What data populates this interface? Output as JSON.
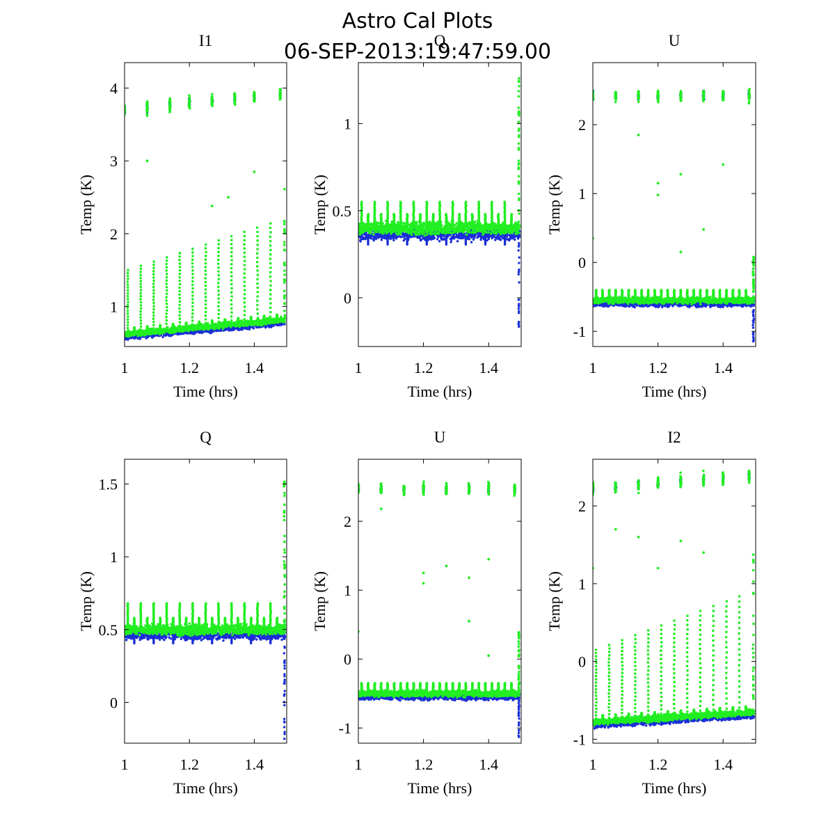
{
  "figure": {
    "title_line1": "Astro Cal Plots",
    "title_line2": "06-SEP-2013:19:47:59.00"
  },
  "colors": {
    "series_a": "#1a2fd6",
    "series_b": "#22ee22",
    "frame": "#000000"
  },
  "chart_data": [
    {
      "type": "scatter",
      "title": "I1",
      "xlabel": "Time (hrs)",
      "ylabel": "Temp (K)",
      "xlim": [
        1,
        1.5
      ],
      "ylim": [
        0.45,
        4.35
      ],
      "xticks": [
        1,
        1.2,
        1.4
      ],
      "yticks": [
        1,
        2,
        3,
        4
      ],
      "grid": false,
      "pattern": {
        "kind": "cal_ramp",
        "base_start": 0.62,
        "base_end": 0.82,
        "band": 0.07,
        "high_level_start": 3.7,
        "high_level_end": 3.92,
        "spike_start": 1.5,
        "spike_end": 2.2,
        "outliers": [
          [
            1.07,
            3.0
          ],
          [
            1.27,
            2.38
          ],
          [
            1.4,
            2.85
          ],
          [
            1.32,
            2.5
          ]
        ]
      },
      "series": [
        {
          "values": "blue"
        },
        {
          "values": "green"
        }
      ]
    },
    {
      "type": "scatter",
      "title": "Q",
      "xlabel": "Time (hrs)",
      "ylabel": "Temp (K)",
      "xlim": [
        1,
        1.5
      ],
      "ylim": [
        -0.28,
        1.35
      ],
      "xticks": [
        1,
        1.2,
        1.4
      ],
      "yticks": [
        0,
        0.5,
        1
      ],
      "grid": false,
      "pattern": {
        "kind": "flat_band",
        "level": 0.4,
        "band": 0.06,
        "spike": 0.55,
        "end_spike_high": 1.3,
        "end_spike_low": -0.25
      },
      "series": [
        {
          "values": "blue"
        },
        {
          "values": "green"
        }
      ]
    },
    {
      "type": "scatter",
      "title": "U",
      "xlabel": "Time (hrs)",
      "ylabel": "Temp (K)",
      "xlim": [
        1,
        1.5
      ],
      "ylim": [
        -1.22,
        2.9
      ],
      "xticks": [
        1,
        1.2,
        1.4
      ],
      "yticks": [
        -1,
        0,
        1,
        2
      ],
      "grid": false,
      "pattern": {
        "kind": "cal_flat",
        "level": -0.55,
        "band": 0.08,
        "high_level": 2.42,
        "end_spike_high": 0.08,
        "end_spike_low": -1.15,
        "outliers": [
          [
            1.07,
            2.45
          ],
          [
            1.14,
            1.85
          ],
          [
            1.2,
            1.15
          ],
          [
            1.2,
            0.98
          ],
          [
            1.27,
            1.28
          ],
          [
            1.27,
            0.15
          ],
          [
            1.34,
            0.48
          ],
          [
            1.4,
            1.42
          ],
          [
            1.0,
            0.35
          ]
        ]
      },
      "series": [
        {
          "values": "blue"
        },
        {
          "values": "green"
        }
      ]
    },
    {
      "type": "scatter",
      "title": "Q",
      "xlabel": "Time (hrs)",
      "ylabel": "Temp (K)",
      "xlim": [
        1,
        1.5
      ],
      "ylim": [
        -0.28,
        1.67
      ],
      "xticks": [
        1,
        1.2,
        1.4
      ],
      "yticks": [
        0,
        0.5,
        1,
        1.5
      ],
      "grid": false,
      "pattern": {
        "kind": "flat_band",
        "level": 0.5,
        "band": 0.06,
        "spike": 0.68,
        "end_spike_high": 1.6,
        "end_spike_low": -0.27
      },
      "series": [
        {
          "values": "blue"
        },
        {
          "values": "green"
        }
      ]
    },
    {
      "type": "scatter",
      "title": "U",
      "xlabel": "Time (hrs)",
      "ylabel": "Temp (K)",
      "xlim": [
        1,
        1.5
      ],
      "ylim": [
        -1.22,
        2.9
      ],
      "xticks": [
        1,
        1.2,
        1.4
      ],
      "yticks": [
        -1,
        0,
        1,
        2
      ],
      "grid": false,
      "pattern": {
        "kind": "cal_flat",
        "level": -0.5,
        "band": 0.08,
        "high_level": 2.47,
        "end_spike_high": 0.4,
        "end_spike_low": -1.15,
        "outliers": [
          [
            1.07,
            2.18
          ],
          [
            1.2,
            1.25
          ],
          [
            1.2,
            1.1
          ],
          [
            1.27,
            1.35
          ],
          [
            1.34,
            1.18
          ],
          [
            1.34,
            0.55
          ],
          [
            1.4,
            1.45
          ],
          [
            1.4,
            0.05
          ],
          [
            1.0,
            0.4
          ]
        ]
      },
      "series": [
        {
          "values": "blue"
        },
        {
          "values": "green"
        }
      ]
    },
    {
      "type": "scatter",
      "title": "I2",
      "xlabel": "Time (hrs)",
      "ylabel": "Temp (K)",
      "xlim": [
        1,
        1.5
      ],
      "ylim": [
        -1.05,
        2.6
      ],
      "xticks": [
        1,
        1.2,
        1.4
      ],
      "yticks": [
        -1,
        0,
        1,
        2
      ],
      "grid": false,
      "pattern": {
        "kind": "cal_ramp",
        "base_start": -0.78,
        "base_end": -0.65,
        "band": 0.07,
        "high_level_start": 2.22,
        "high_level_end": 2.38,
        "spike_start": 0.15,
        "spike_end": 0.9,
        "outliers": [
          [
            1.07,
            1.7
          ],
          [
            1.14,
            1.6
          ],
          [
            1.2,
            1.2
          ],
          [
            1.27,
            1.55
          ],
          [
            1.34,
            1.4
          ],
          [
            1.0,
            1.2
          ]
        ]
      },
      "series": [
        {
          "values": "blue"
        },
        {
          "values": "green"
        }
      ]
    }
  ]
}
